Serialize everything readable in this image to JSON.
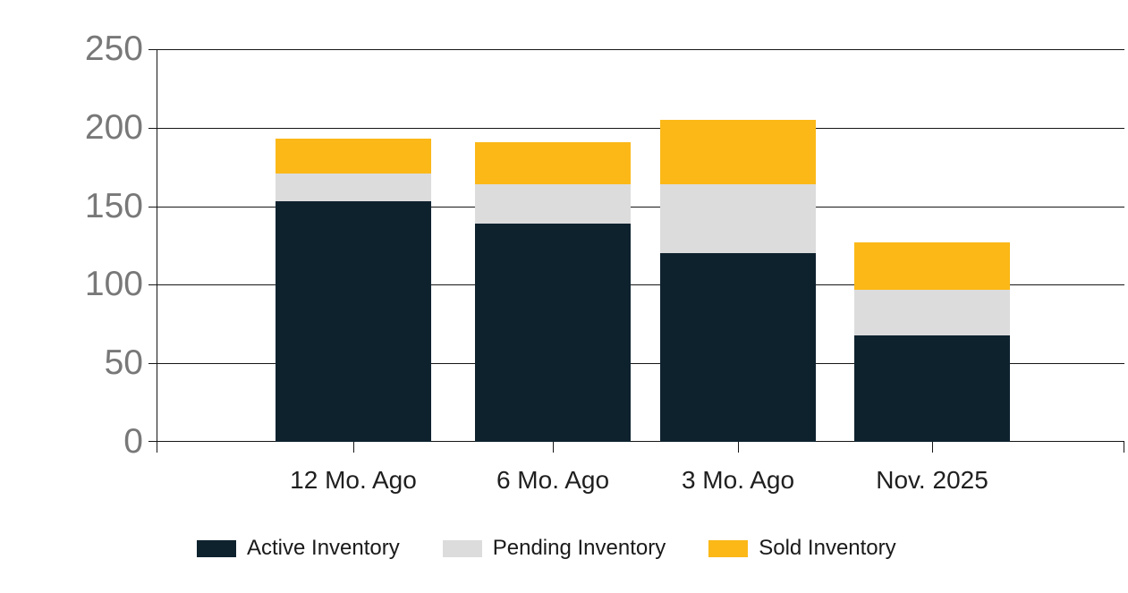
{
  "chart_data": {
    "type": "bar",
    "stacked": true,
    "title": "",
    "xlabel": "",
    "ylabel": "",
    "categories": [
      "12 Mo. Ago",
      "6 Mo. Ago",
      "3 Mo. Ago",
      "Nov. 2025"
    ],
    "series": [
      {
        "name": "Active Inventory",
        "color": "#0e222e",
        "values": [
          153,
          139,
          120,
          68
        ]
      },
      {
        "name": "Pending Inventory",
        "color": "#dcdcdd",
        "values": [
          18,
          25,
          44,
          29
        ]
      },
      {
        "name": "Sold Inventory",
        "color": "#fbb817",
        "values": [
          22,
          27,
          41,
          30
        ]
      }
    ],
    "totals": [
      193,
      191,
      205,
      127
    ],
    "ylim": [
      0,
      250
    ],
    "yticks": [
      0,
      50,
      100,
      150,
      200,
      250
    ],
    "grid": true,
    "legend_position": "bottom"
  },
  "colors": {
    "background": "#ffffff",
    "axis_line": "#161616",
    "y_tick_label": "#787878",
    "x_tick_label": "#1f1f1f",
    "legend_text": "#1a1a1a"
  }
}
